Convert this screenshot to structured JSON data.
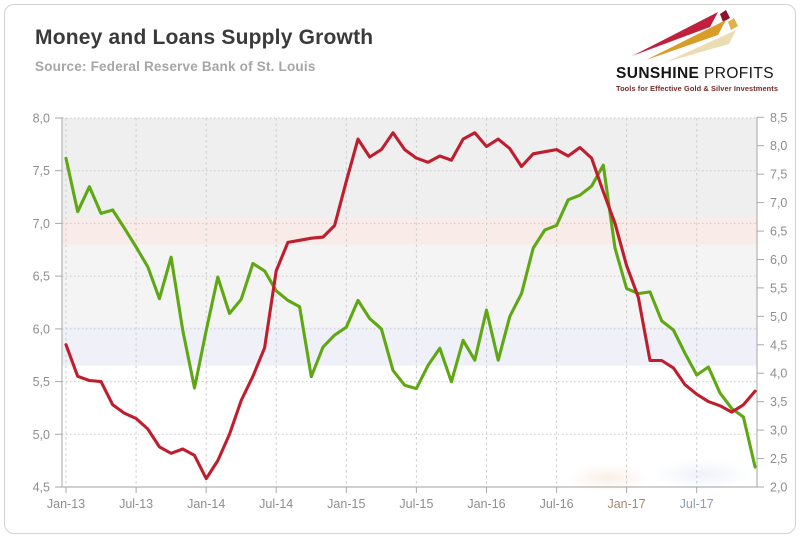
{
  "header": {
    "title": "Money and Loans Supply Growth",
    "source": "Source: Federal Reserve Bank of St. Louis"
  },
  "logo": {
    "brand_bold": "SUNSHINE",
    "brand_light": "PROFITS",
    "tagline": "Tools for Effective Gold & Silver Investments"
  },
  "chart_data": {
    "type": "line",
    "title": "Money and Loans Supply Growth",
    "grid": "dotted horizontal at left-axis 0.5 steps, dashed vertical every 6 months",
    "legend": "none shown",
    "frequency": "monthly",
    "months": [
      "Jan-13",
      "Feb-13",
      "Mar-13",
      "Apr-13",
      "May-13",
      "Jun-13",
      "Jul-13",
      "Aug-13",
      "Sep-13",
      "Oct-13",
      "Nov-13",
      "Dec-13",
      "Jan-14",
      "Feb-14",
      "Mar-14",
      "Apr-14",
      "May-14",
      "Jun-14",
      "Jul-14",
      "Aug-14",
      "Sep-14",
      "Oct-14",
      "Nov-14",
      "Dec-14",
      "Jan-15",
      "Feb-15",
      "Mar-15",
      "Apr-15",
      "May-15",
      "Jun-15",
      "Jul-15",
      "Aug-15",
      "Sep-15",
      "Oct-15",
      "Nov-15",
      "Dec-15",
      "Jan-16",
      "Feb-16",
      "Mar-16",
      "Apr-16",
      "May-16",
      "Jun-16",
      "Jul-16",
      "Aug-16",
      "Sep-16",
      "Oct-16",
      "Nov-16",
      "Dec-16",
      "Jan-17",
      "Feb-17",
      "Mar-17",
      "Apr-17",
      "May-17",
      "Jun-17",
      "Jul-17",
      "Aug-17",
      "Sep-17",
      "Oct-17",
      "Nov-17",
      "Dec-17"
    ],
    "left_axis": {
      "min": 4.5,
      "max": 8.0,
      "step": 0.5,
      "values": [
        8.0,
        7.5,
        7.0,
        6.5,
        6.0,
        5.5,
        5.0,
        4.5
      ],
      "labels": [
        "8,0",
        "7,5",
        "7,0",
        "6,5",
        "6,0",
        "5,5",
        "5,0",
        "4,5"
      ]
    },
    "right_axis": {
      "min": 2.0,
      "max": 8.5,
      "step": 0.5,
      "values": [
        8.5,
        8.0,
        7.5,
        7.0,
        6.5,
        6.0,
        5.5,
        5.0,
        4.5,
        4.0,
        3.5,
        3.0,
        2.5,
        2.0
      ],
      "labels": [
        "8,5",
        "8,0",
        "7,5",
        "7,0",
        "6,5",
        "6,0",
        "5,5",
        "5,0",
        "4,5",
        "4,0",
        "3,5",
        "3,0",
        "2,5",
        "2,0"
      ]
    },
    "x_axis": {
      "labels": [
        "Jan-13",
        "Jul-13",
        "Jan-14",
        "Jul-14",
        "Jan-15",
        "Jul-15",
        "Jan-16",
        "Jul-16",
        "Jan-17",
        "Jul-17"
      ],
      "label_colors": {
        "Jan-17": "#a08a72",
        "Jul-17": "#8d9cb2"
      },
      "default_label_color": "#8e8e8e"
    },
    "bands": [
      {
        "from": 8.0,
        "to": 7.05,
        "color": "#efefef"
      },
      {
        "from": 7.05,
        "to": 6.8,
        "color": "#f8ebe8"
      },
      {
        "from": 6.8,
        "to": 6.02,
        "color": "#f4f4f5"
      },
      {
        "from": 6.02,
        "to": 5.65,
        "color": "#f0f1f8"
      },
      {
        "from": 5.65,
        "to": 4.5,
        "color": "#ffffff"
      }
    ],
    "series": [
      {
        "name": "green line (right axis)",
        "data_name": "loans-growth-line",
        "axis": "right",
        "color": "#5fa814",
        "values": [
          7.78,
          6.84,
          7.28,
          6.81,
          6.87,
          6.55,
          6.22,
          5.87,
          5.31,
          6.04,
          4.75,
          3.74,
          4.75,
          5.69,
          5.05,
          5.3,
          5.93,
          5.8,
          5.45,
          5.28,
          5.17,
          3.94,
          4.46,
          4.67,
          4.81,
          5.28,
          4.96,
          4.78,
          4.05,
          3.79,
          3.73,
          4.14,
          4.44,
          3.85,
          4.58,
          4.23,
          5.11,
          4.23,
          5.0,
          5.4,
          6.2,
          6.52,
          6.6,
          7.05,
          7.13,
          7.29,
          7.66,
          6.2,
          5.49,
          5.4,
          5.43,
          4.92,
          4.76,
          4.35,
          3.97,
          4.11,
          3.65,
          3.38,
          3.23,
          2.35
        ]
      },
      {
        "name": "red line (left axis)",
        "data_name": "money-supply-line",
        "axis": "left",
        "color": "#bf1e2e",
        "values": [
          5.85,
          5.55,
          5.51,
          5.5,
          5.28,
          5.2,
          5.15,
          5.05,
          4.88,
          4.82,
          4.86,
          4.8,
          4.58,
          4.75,
          5.0,
          5.32,
          5.55,
          5.82,
          6.55,
          6.82,
          6.84,
          6.86,
          6.87,
          6.98,
          7.4,
          7.8,
          7.63,
          7.7,
          7.86,
          7.7,
          7.62,
          7.58,
          7.64,
          7.6,
          7.8,
          7.86,
          7.73,
          7.8,
          7.71,
          7.54,
          7.66,
          7.68,
          7.7,
          7.64,
          7.72,
          7.62,
          7.3,
          7.0,
          6.6,
          6.3,
          5.7,
          5.7,
          5.63,
          5.47,
          5.38,
          5.31,
          5.27,
          5.21,
          5.28,
          5.41
        ]
      }
    ]
  }
}
